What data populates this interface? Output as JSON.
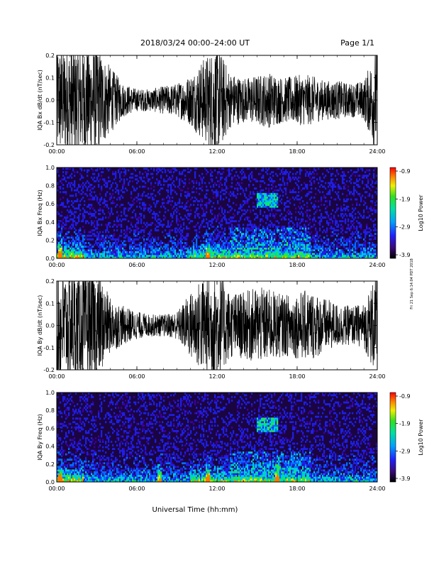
{
  "header": {
    "title": "2018/03/24  00:00–24:00 UT",
    "page": "Page 1/1"
  },
  "footer": {
    "xlabel": "Universal Time (hh:mm)"
  },
  "side_note": "Fri 21 Sep 6:14:04 PDT 2018",
  "x_ticks": [
    "00:00",
    "06:00",
    "12:00",
    "18:00",
    "24:00"
  ],
  "colorbar_ticks": [
    "-0.9",
    "-1.9",
    "-2.9",
    "-3.9"
  ],
  "chart_data": [
    {
      "type": "line",
      "ylabel": "IQA Bx dB/dt (nT/sec)",
      "ylim": [
        -0.2,
        0.2
      ],
      "xlim_hours": [
        0,
        24
      ],
      "y_ticks": [
        "0.2",
        "0.1",
        "0.0",
        "-0.1",
        "-0.2"
      ],
      "series": [
        {
          "hours": [
            0,
            1,
            2,
            3,
            4,
            5,
            6,
            7,
            8,
            9,
            10,
            11,
            12,
            13,
            14,
            15,
            16,
            17,
            18,
            19,
            20,
            21,
            22,
            23,
            24
          ],
          "envelope": [
            0.2,
            0.2,
            0.2,
            0.2,
            0.12,
            0.06,
            0.04,
            0.04,
            0.05,
            0.06,
            0.09,
            0.15,
            0.2,
            0.1,
            0.08,
            0.09,
            0.1,
            0.08,
            0.09,
            0.09,
            0.07,
            0.07,
            0.06,
            0.07,
            0.2
          ]
        }
      ]
    },
    {
      "type": "heatmap",
      "ylabel": "IQA Bx Freq (Hz)",
      "ylim": [
        0.0,
        1.0
      ],
      "xlim_hours": [
        0,
        24
      ],
      "y_ticks": [
        "1.0",
        "0.8",
        "0.6",
        "0.4",
        "0.2",
        "0.0"
      ],
      "colorbar_label": "Log10 Power",
      "zlim": [
        -3.9,
        -0.9
      ]
    },
    {
      "type": "line",
      "ylabel": "IQA By dB/dt (nT/sec)",
      "ylim": [
        -0.2,
        0.2
      ],
      "xlim_hours": [
        0,
        24
      ],
      "y_ticks": [
        "0.2",
        "0.1",
        "0.0",
        "-0.1",
        "-0.2"
      ],
      "series": [
        {
          "hours": [
            0,
            1,
            2,
            3,
            4,
            5,
            6,
            7,
            8,
            9,
            10,
            11,
            12,
            13,
            14,
            15,
            16,
            17,
            18,
            19,
            20,
            21,
            22,
            23,
            24
          ],
          "envelope": [
            0.2,
            0.2,
            0.2,
            0.2,
            0.1,
            0.07,
            0.05,
            0.04,
            0.04,
            0.05,
            0.12,
            0.18,
            0.2,
            0.12,
            0.12,
            0.14,
            0.13,
            0.11,
            0.12,
            0.13,
            0.1,
            0.08,
            0.07,
            0.08,
            0.2
          ]
        }
      ]
    },
    {
      "type": "heatmap",
      "ylabel": "IQA By Freq (Hz)",
      "ylim": [
        0.0,
        1.0
      ],
      "xlim_hours": [
        0,
        24
      ],
      "y_ticks": [
        "1.0",
        "0.8",
        "0.6",
        "0.4",
        "0.2",
        "0.0"
      ],
      "colorbar_label": "Log10 Power",
      "zlim": [
        -3.9,
        -0.9
      ]
    }
  ]
}
